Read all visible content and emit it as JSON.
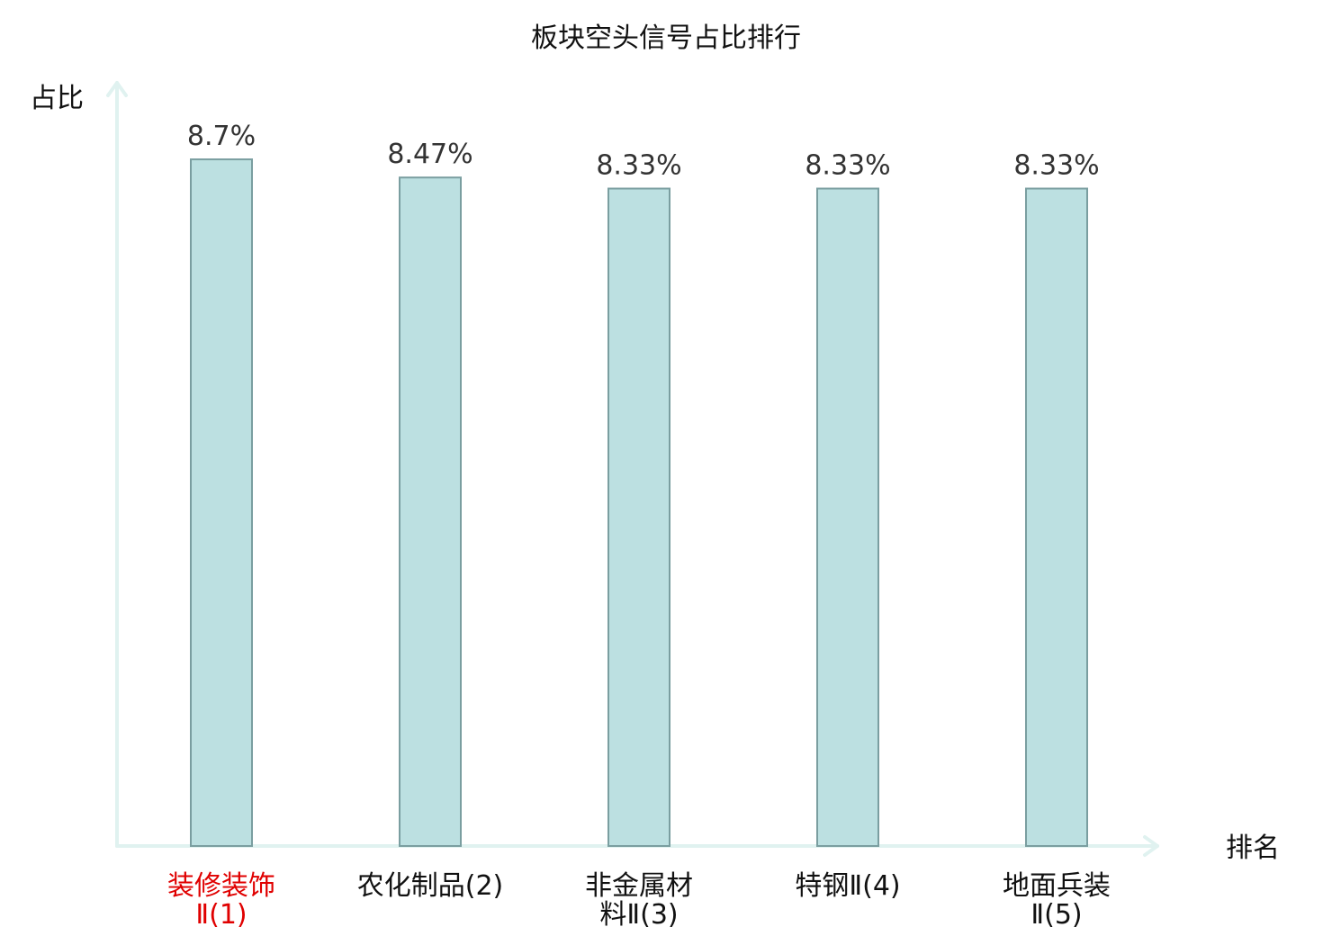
{
  "chart_data": {
    "type": "bar",
    "title": "板块空头信号占比排行",
    "ylabel": "占比",
    "xlabel": "排名",
    "ylim": [
      0,
      9.67
    ],
    "bar_color": "#bce0e1",
    "bar_stroke": "#7a9ea0",
    "axis_color": "#e0f2f0",
    "highlight_color": "#e00000",
    "categories": [
      {
        "lines": [
          "装修装饰",
          "Ⅱ(1)"
        ],
        "highlight": true
      },
      {
        "lines": [
          "农化制品(2)"
        ],
        "highlight": false
      },
      {
        "lines": [
          "非金属材",
          "料Ⅱ(3)"
        ],
        "highlight": false
      },
      {
        "lines": [
          "特钢Ⅱ(4)"
        ],
        "highlight": false
      },
      {
        "lines": [
          "地面兵装",
          "Ⅱ(5)"
        ],
        "highlight": false
      }
    ],
    "values": [
      8.7,
      8.47,
      8.33,
      8.33,
      8.33
    ],
    "value_labels": [
      "8.7%",
      "8.47%",
      "8.33%",
      "8.33%",
      "8.33%"
    ]
  }
}
